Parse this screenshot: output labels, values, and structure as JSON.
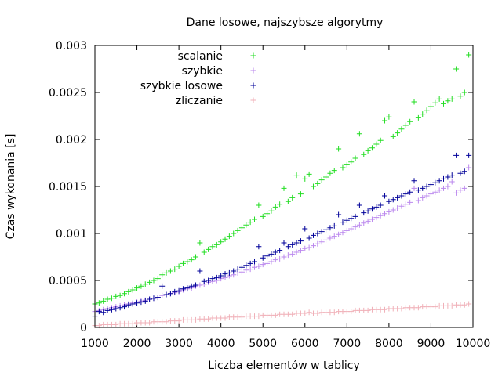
{
  "chart_data": {
    "type": "scatter",
    "title": "Dane losowe, najszybsze algorytmy",
    "xlabel": "Liczba elementów w tablicy",
    "ylabel": "Czas wykonania [s]",
    "xlim": [
      1000,
      10000
    ],
    "ylim": [
      0,
      0.003
    ],
    "xticks": [
      1000,
      2000,
      3000,
      4000,
      5000,
      6000,
      7000,
      8000,
      9000,
      10000
    ],
    "xtick_labels": [
      "1000",
      "2000",
      "3000",
      "4000",
      "5000",
      "6000",
      "7000",
      "8000",
      "9000",
      "10000"
    ],
    "yticks": [
      0,
      0.0005,
      0.001,
      0.0015,
      0.002,
      0.0025,
      0.003
    ],
    "ytick_labels": [
      "0",
      "0.0005",
      "0.001",
      "0.0015",
      "0.002",
      "0.0025",
      "0.003"
    ],
    "grid": false,
    "legend_position": "top-left",
    "marker": "plus",
    "x": [
      1000,
      1100,
      1200,
      1300,
      1400,
      1500,
      1600,
      1700,
      1800,
      1900,
      2000,
      2100,
      2200,
      2300,
      2400,
      2500,
      2600,
      2700,
      2800,
      2900,
      3000,
      3100,
      3200,
      3300,
      3400,
      3500,
      3600,
      3700,
      3800,
      3900,
      4000,
      4100,
      4200,
      4300,
      4400,
      4500,
      4600,
      4700,
      4800,
      4900,
      5000,
      5100,
      5200,
      5300,
      5400,
      5500,
      5600,
      5700,
      5800,
      5900,
      6000,
      6100,
      6200,
      6300,
      6400,
      6500,
      6600,
      6700,
      6800,
      6900,
      7000,
      7100,
      7200,
      7300,
      7400,
      7500,
      7600,
      7700,
      7800,
      7900,
      8000,
      8100,
      8200,
      8300,
      8400,
      8500,
      8600,
      8700,
      8800,
      8900,
      9000,
      9100,
      9200,
      9300,
      9400,
      9500,
      9600,
      9700,
      9800,
      9900
    ],
    "series": [
      {
        "name": "scalanie",
        "color": "#22dd22",
        "values": [
          0.00025,
          0.00026,
          0.00028,
          0.0003,
          0.00031,
          0.00033,
          0.00034,
          0.00036,
          0.00038,
          0.0004,
          0.00042,
          0.00044,
          0.00046,
          0.00048,
          0.0005,
          0.00052,
          0.00056,
          0.00058,
          0.0006,
          0.00062,
          0.00065,
          0.00068,
          0.0007,
          0.00072,
          0.00075,
          0.0009,
          0.0008,
          0.00083,
          0.00086,
          0.00088,
          0.00091,
          0.00094,
          0.00097,
          0.001,
          0.00103,
          0.00106,
          0.00109,
          0.00112,
          0.00115,
          0.0013,
          0.00118,
          0.00121,
          0.00124,
          0.00128,
          0.00131,
          0.00148,
          0.00134,
          0.00138,
          0.00162,
          0.00142,
          0.00158,
          0.00163,
          0.0015,
          0.00153,
          0.00157,
          0.0016,
          0.00164,
          0.00167,
          0.0019,
          0.0017,
          0.00173,
          0.00176,
          0.0018,
          0.00206,
          0.00184,
          0.00188,
          0.00191,
          0.00195,
          0.00199,
          0.0022,
          0.00224,
          0.00203,
          0.00207,
          0.00211,
          0.00215,
          0.00219,
          0.0024,
          0.00223,
          0.00227,
          0.00231,
          0.00235,
          0.00239,
          0.00243,
          0.00238,
          0.00241,
          0.00243,
          0.00275,
          0.00246,
          0.0025,
          0.0029
        ]
      },
      {
        "name": "szybkie",
        "color": "#bb88ee",
        "values": [
          0.00017,
          0.00018,
          0.00019,
          0.0002,
          0.00021,
          0.00022,
          0.00023,
          0.00024,
          0.00025,
          0.00026,
          0.00027,
          0.00028,
          0.00029,
          0.0003,
          0.00031,
          0.00032,
          0.00034,
          0.00035,
          0.00036,
          0.00037,
          0.00038,
          0.0004,
          0.00041,
          0.00042,
          0.00044,
          0.00045,
          0.00046,
          0.00048,
          0.00049,
          0.0005,
          0.00052,
          0.00053,
          0.00055,
          0.00056,
          0.00058,
          0.00059,
          0.00061,
          0.00062,
          0.00064,
          0.00065,
          0.00067,
          0.00068,
          0.0007,
          0.00072,
          0.00073,
          0.00075,
          0.00077,
          0.00078,
          0.0008,
          0.00082,
          0.00084,
          0.00085,
          0.00087,
          0.00089,
          0.00091,
          0.00093,
          0.00095,
          0.00097,
          0.00099,
          0.00101,
          0.00103,
          0.00105,
          0.00107,
          0.00109,
          0.00111,
          0.00113,
          0.00115,
          0.00117,
          0.00119,
          0.00121,
          0.00123,
          0.00125,
          0.00127,
          0.00129,
          0.00131,
          0.00133,
          0.00148,
          0.00135,
          0.00138,
          0.0014,
          0.00142,
          0.00144,
          0.00146,
          0.00148,
          0.0015,
          0.00155,
          0.00143,
          0.00146,
          0.00148,
          0.0017
        ]
      },
      {
        "name": "szybkie losowe",
        "color": "#000099",
        "values": [
          0.00012,
          0.00017,
          0.00016,
          0.00018,
          0.00019,
          0.0002,
          0.00021,
          0.00022,
          0.00024,
          0.00025,
          0.00026,
          0.00027,
          0.00028,
          0.0003,
          0.00031,
          0.00032,
          0.00044,
          0.00035,
          0.00036,
          0.00038,
          0.00039,
          0.00041,
          0.00042,
          0.00044,
          0.00045,
          0.0006,
          0.00049,
          0.0005,
          0.00052,
          0.00053,
          0.00055,
          0.00057,
          0.00058,
          0.0006,
          0.00062,
          0.00064,
          0.00066,
          0.00068,
          0.0007,
          0.00086,
          0.00074,
          0.00076,
          0.00078,
          0.0008,
          0.00082,
          0.0009,
          0.00086,
          0.00088,
          0.0009,
          0.00092,
          0.00105,
          0.00095,
          0.00098,
          0.001,
          0.00102,
          0.00104,
          0.00106,
          0.00108,
          0.0012,
          0.00112,
          0.00114,
          0.00116,
          0.00118,
          0.0013,
          0.00122,
          0.00124,
          0.00126,
          0.00128,
          0.0013,
          0.0014,
          0.00134,
          0.00136,
          0.00138,
          0.0014,
          0.00142,
          0.00144,
          0.00156,
          0.00146,
          0.00148,
          0.0015,
          0.00152,
          0.00154,
          0.00156,
          0.00158,
          0.0016,
          0.00162,
          0.00183,
          0.00164,
          0.00166,
          0.00183
        ]
      },
      {
        "name": "zliczanie",
        "color": "#f0b0b8",
        "values": [
          2e-05,
          2e-05,
          3e-05,
          3e-05,
          3e-05,
          3e-05,
          4e-05,
          4e-05,
          4e-05,
          4e-05,
          5e-05,
          5e-05,
          5e-05,
          5e-05,
          6e-05,
          6e-05,
          6e-05,
          6e-05,
          7e-05,
          7e-05,
          7e-05,
          8e-05,
          8e-05,
          8e-05,
          8e-05,
          9e-05,
          9e-05,
          9e-05,
          0.0001,
          0.0001,
          0.0001,
          0.0001,
          0.00011,
          0.00011,
          0.00011,
          0.00011,
          0.00012,
          0.00012,
          0.00012,
          0.00012,
          0.00013,
          0.00013,
          0.00013,
          0.00013,
          0.00014,
          0.00014,
          0.00014,
          0.00014,
          0.00015,
          0.00015,
          0.00015,
          0.00016,
          0.00015,
          0.00015,
          0.00016,
          0.00016,
          0.00016,
          0.00016,
          0.00017,
          0.00017,
          0.00017,
          0.00017,
          0.00018,
          0.00018,
          0.00018,
          0.00018,
          0.00019,
          0.00019,
          0.00019,
          0.00019,
          0.0002,
          0.0002,
          0.0002,
          0.0002,
          0.00021,
          0.00021,
          0.00021,
          0.00021,
          0.00022,
          0.00022,
          0.00022,
          0.00022,
          0.00023,
          0.00023,
          0.00023,
          0.00023,
          0.00024,
          0.00024,
          0.00024,
          0.00025
        ]
      }
    ]
  }
}
